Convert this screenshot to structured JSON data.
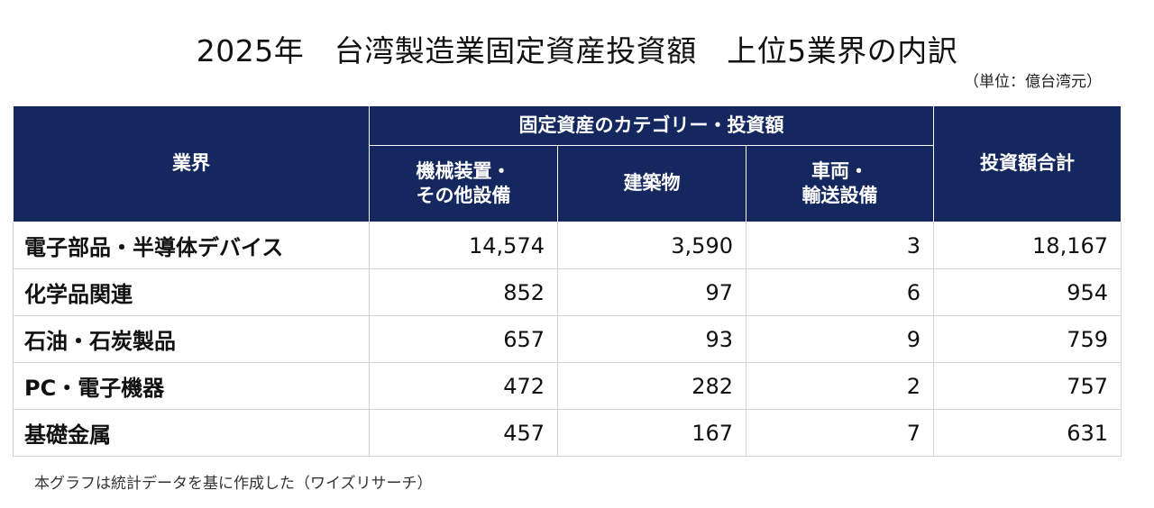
{
  "title": "2025年　台湾製造業固定資産投資額　上位5業界の内訳",
  "unit_note": "（単位：億台湾元）",
  "chart_data": {
    "type": "table",
    "headers": {
      "industry": "業界",
      "group": "固定資産のカテゴリー・投資額",
      "machinery_line1": "機械装置・",
      "machinery_line2": "その他設備",
      "buildings": "建築物",
      "vehicles_line1": "車両・",
      "vehicles_line2": "輸送設備",
      "total": "投資額合計"
    },
    "rows": [
      {
        "industry": "電子部品・半導体デバイス",
        "machinery": "14,574",
        "buildings": "3,590",
        "vehicles": "3",
        "total": "18,167"
      },
      {
        "industry": "化学品関連",
        "machinery": "852",
        "buildings": "97",
        "vehicles": "6",
        "total": "954"
      },
      {
        "industry": "石油・石炭製品",
        "machinery": "657",
        "buildings": "93",
        "vehicles": "9",
        "total": "759"
      },
      {
        "industry": "PC・電子機器",
        "machinery": "472",
        "buildings": "282",
        "vehicles": "2",
        "total": "757"
      },
      {
        "industry": "基礎金属",
        "machinery": "457",
        "buildings": "167",
        "vehicles": "7",
        "total": "631"
      }
    ]
  },
  "footnote": "本グラフは統計データを基に作成した（ワイズリサーチ）",
  "colors": {
    "header_bg": "#14275e",
    "header_text": "#ffffff",
    "grid": "#d3d3d3"
  }
}
